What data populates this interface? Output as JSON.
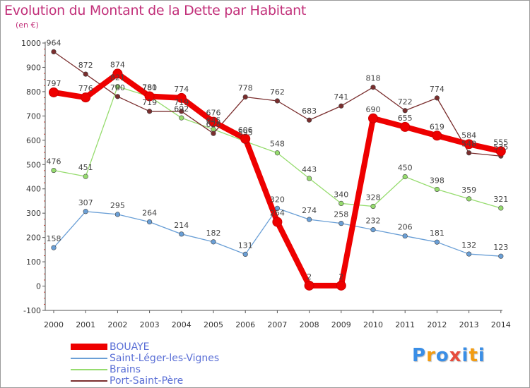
{
  "title": "Evolution du Montant de la Dette par Habitant",
  "unit": "(en €)",
  "logo": [
    "P",
    "r",
    "o",
    "x",
    "i",
    "t",
    "i"
  ],
  "chart_data": {
    "type": "line",
    "x": [
      "2000",
      "2001",
      "2002",
      "2003",
      "2004",
      "2005",
      "2006",
      "2007",
      "2008",
      "2009",
      "2010",
      "2011",
      "2012",
      "2013",
      "2014"
    ],
    "ylim": [
      -100,
      1000
    ],
    "yticks": [
      -100,
      0,
      100,
      200,
      300,
      400,
      500,
      600,
      700,
      800,
      900,
      1000
    ],
    "grid": false,
    "legend_position": "bottom-left",
    "series": [
      {
        "name": "BOUAYE",
        "color": "#ee0000",
        "values": [
          797,
          776,
          874,
          781,
          774,
          676,
          606,
          264,
          2,
          2,
          690,
          655,
          619,
          584,
          555
        ]
      },
      {
        "name": "Saint-Léger-les-Vignes",
        "color": "#6a9fd6",
        "values": [
          158,
          307,
          295,
          264,
          214,
          182,
          131,
          320,
          274,
          258,
          232,
          206,
          181,
          132,
          123
        ]
      },
      {
        "name": "Brains",
        "color": "#96dc6e",
        "values": [
          476,
          451,
          821,
          780,
          692,
          645,
          595,
          548,
          443,
          340,
          328,
          450,
          398,
          359,
          321
        ]
      },
      {
        "name": "Port-Saint-Père",
        "color": "#7a2e2e",
        "values": [
          964,
          872,
          780,
          719,
          719,
          628,
          778,
          762,
          683,
          741,
          818,
          722,
          774,
          548,
          535
        ]
      }
    ],
    "labels": [
      [
        "797",
        "776",
        "874",
        "781",
        "774",
        "676",
        "606",
        "264",
        "2",
        "2",
        "690",
        "655",
        "619",
        "584",
        "555"
      ],
      [
        "158",
        "307",
        "295",
        "264",
        "214",
        "182",
        "131",
        "320",
        "274",
        "258",
        "232",
        "206",
        "181",
        "132",
        "123"
      ],
      [
        "476",
        "451",
        "821",
        "780",
        "692",
        "645",
        "595",
        "548",
        "443",
        "340",
        "328",
        "450",
        "398",
        "359",
        "321"
      ],
      [
        "964",
        "872",
        "780",
        "719",
        "719",
        "628",
        "778",
        "762",
        "683",
        "741",
        "818",
        "722",
        "774",
        "548",
        "535"
      ]
    ]
  }
}
